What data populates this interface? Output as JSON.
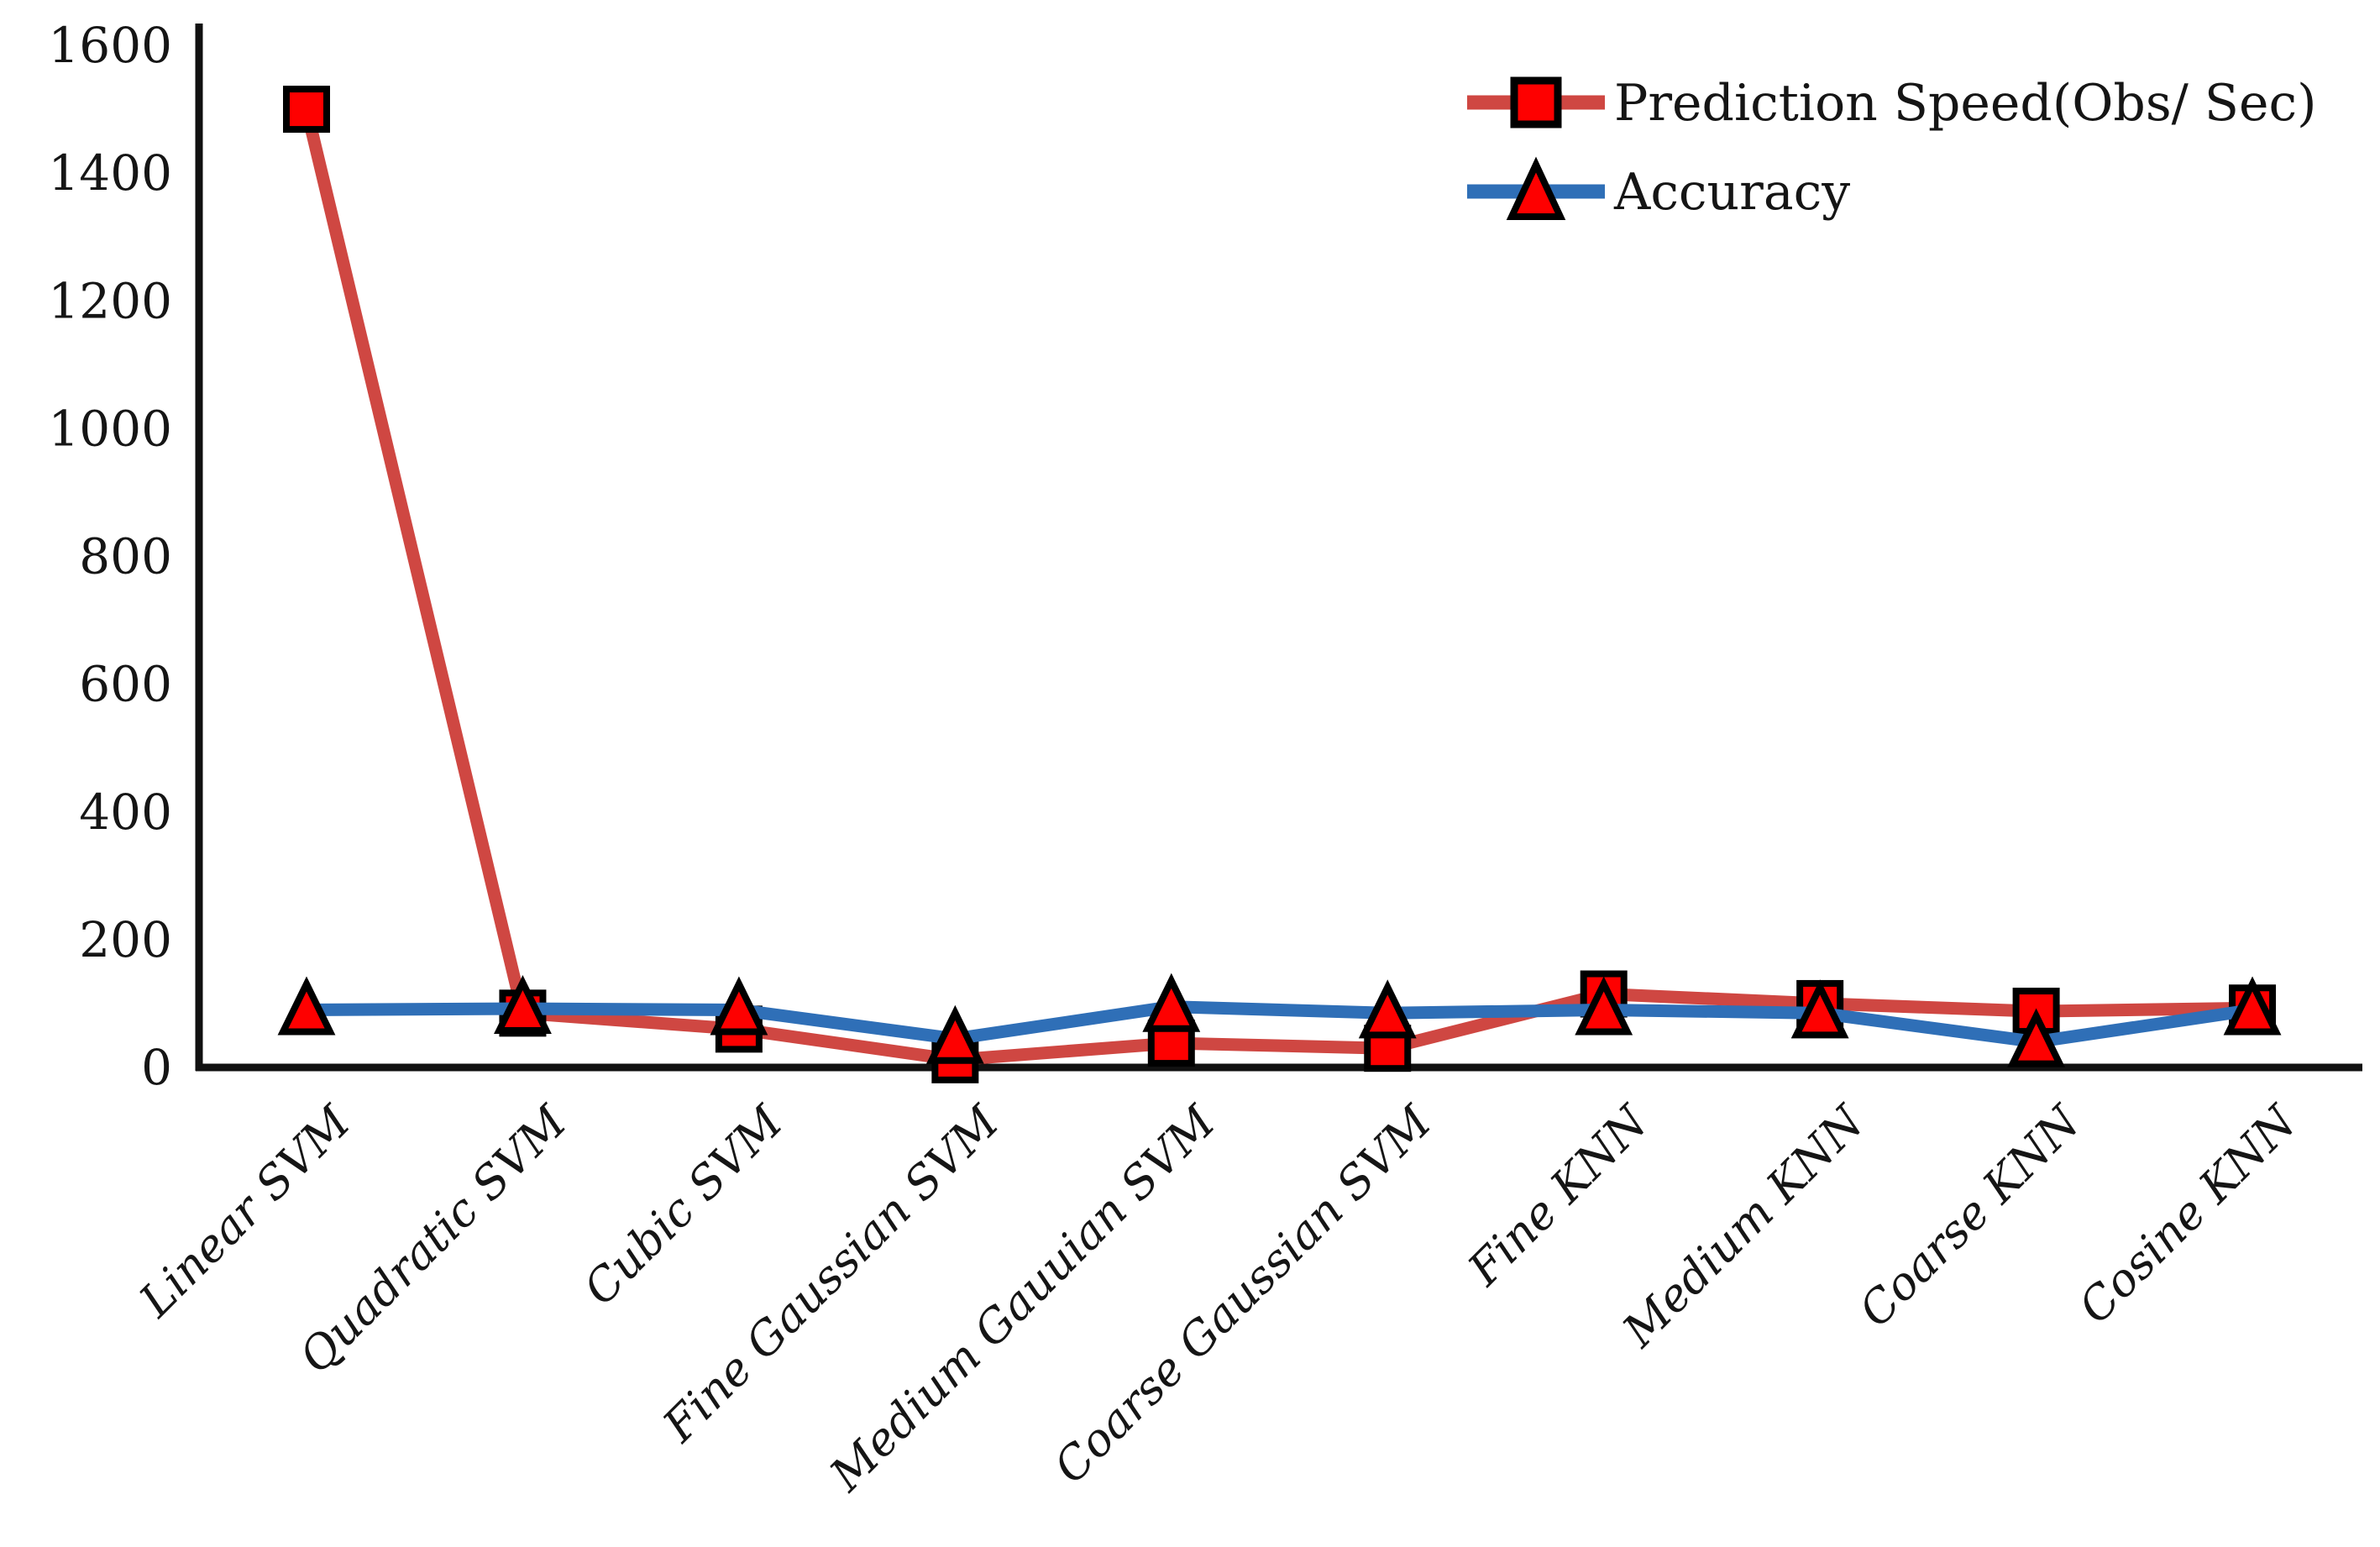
{
  "chart_data": {
    "type": "line",
    "title": "",
    "xlabel": "",
    "ylabel": "",
    "categories": [
      "Linear SVM",
      "Quadratic SVM",
      "Cubic SVM",
      "Fine Gaussian SVM",
      "Medium Gauuian SVM",
      "Coarse Gaussian SVM",
      "Fine KNN",
      "Medium KNN",
      "Coarse KNN",
      "Cosine KNN"
    ],
    "series": [
      {
        "name": "Prediction Speed(Obs/ Sec)",
        "marker": "square",
        "line_color": "#cf4742",
        "marker_fill": "#fe0000",
        "marker_stroke": "#000000",
        "values": [
          1500,
          85,
          60,
          12,
          38,
          30,
          115,
          100,
          88,
          93
        ]
      },
      {
        "name": "Accuracy",
        "marker": "triangle",
        "line_color": "#2f6fb7",
        "marker_fill": "#fe0000",
        "marker_stroke": "#000000",
        "values": [
          90,
          92,
          90,
          45,
          95,
          85,
          90,
          85,
          40,
          90
        ]
      }
    ],
    "ylim": [
      0,
      1600
    ],
    "yticks": [
      0,
      200,
      400,
      600,
      800,
      1000,
      1200,
      1400,
      1600
    ],
    "grid": false,
    "legend_position": "top-right",
    "axis_color": "#111111"
  }
}
